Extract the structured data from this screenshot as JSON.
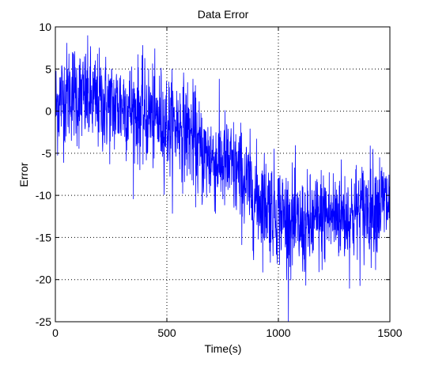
{
  "chart_data": {
    "type": "line",
    "title": "Data Error",
    "xlabel": "Time(s)",
    "ylabel": "Error",
    "xlim": [
      0,
      1500
    ],
    "ylim": [
      -25,
      10
    ],
    "xticks": [
      0,
      500,
      1000,
      1500
    ],
    "yticks": [
      -25,
      -20,
      -15,
      -10,
      -5,
      0,
      5,
      10
    ],
    "x_tick_labels": [
      "0",
      "500",
      "1000",
      "1500"
    ],
    "y_tick_labels": [
      "-25",
      "-20",
      "-15",
      "-10",
      "-5",
      "0",
      "5",
      "10"
    ],
    "grid": true,
    "grid_style": "dotted",
    "series": [
      {
        "color": "#0000ff",
        "x": [
          0,
          25,
          50,
          75,
          100,
          125,
          150,
          175,
          200,
          225,
          250,
          275,
          300,
          325,
          350,
          375,
          400,
          425,
          450,
          475,
          500,
          525,
          550,
          575,
          600,
          625,
          650,
          675,
          700,
          725,
          750,
          775,
          800,
          825,
          850,
          875,
          900,
          925,
          950,
          975,
          1000,
          1025,
          1050,
          1075,
          1100,
          1125,
          1150,
          1175,
          1200,
          1225,
          1250,
          1275,
          1300,
          1325,
          1350,
          1375,
          1400,
          1425,
          1450,
          1475,
          1500
        ],
        "y": [
          0.5,
          1.5,
          2,
          2.5,
          1.8,
          1.5,
          1.5,
          1,
          1,
          0.8,
          0.5,
          0.5,
          0.8,
          0.5,
          0,
          0,
          -0.5,
          -0.3,
          -1,
          -1,
          -1.5,
          -2,
          -1.5,
          -2,
          -2.5,
          -3.5,
          -5,
          -5.5,
          -5.5,
          -6,
          -6,
          -6.5,
          -7,
          -7.5,
          -8.5,
          -9.5,
          -10.5,
          -10.5,
          -11,
          -11.5,
          -12,
          -12.5,
          -13,
          -13.5,
          -14,
          -14,
          -13.5,
          -13,
          -12.5,
          -12.5,
          -12.5,
          -12,
          -12.5,
          -12.5,
          -12,
          -12,
          -11.5,
          -11,
          -11,
          -11,
          -11
        ]
      }
    ]
  }
}
